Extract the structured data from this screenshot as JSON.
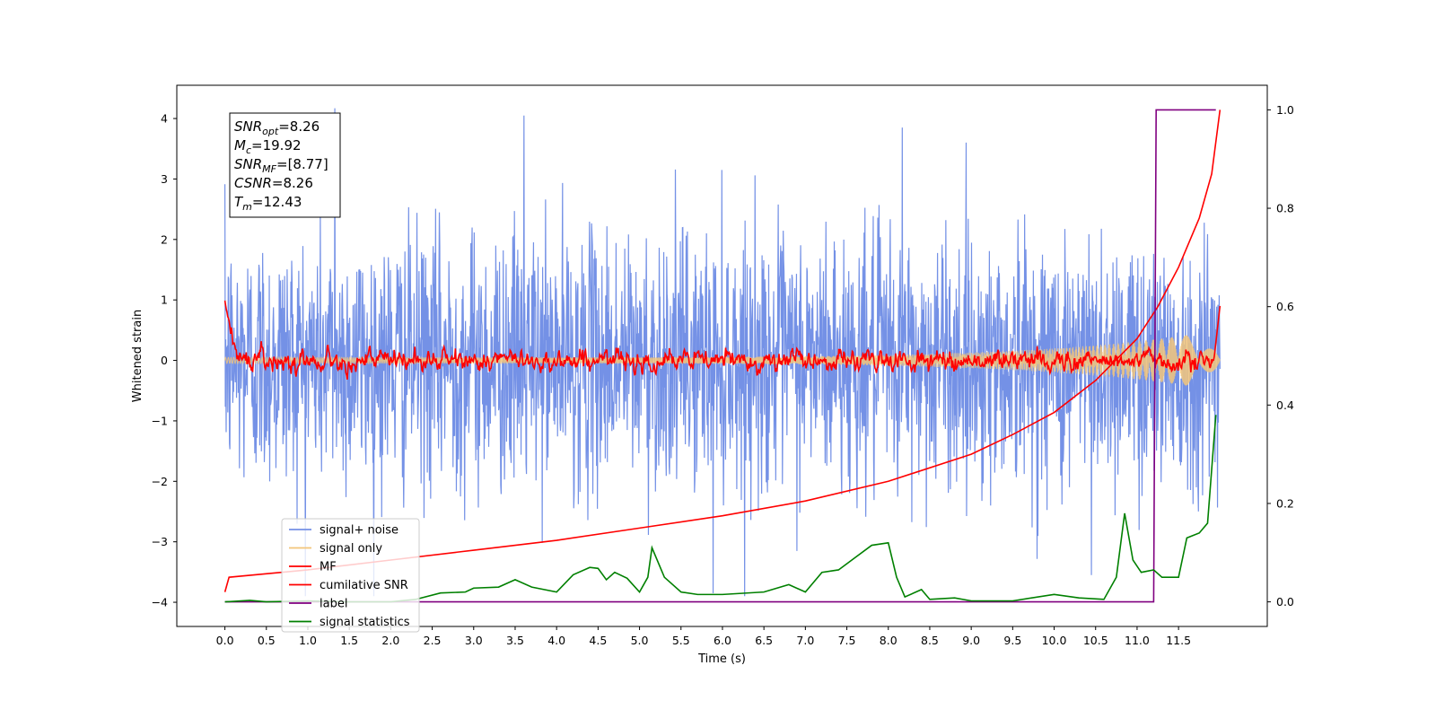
{
  "chart_data": {
    "type": "line",
    "xlabel": "Time (s)",
    "ylabel": "Whitened strain",
    "xlim": [
      -0.58,
      12.57
    ],
    "ylim": [
      -4.4,
      4.55
    ],
    "y2lim": [
      -0.05,
      1.05
    ],
    "xticks": [
      "0.0",
      "0.5",
      "1.0",
      "1.5",
      "2.0",
      "2.5",
      "3.0",
      "3.5",
      "4.0",
      "4.5",
      "5.0",
      "5.5",
      "6.0",
      "6.5",
      "7.0",
      "7.5",
      "8.0",
      "8.5",
      "9.0",
      "9.5",
      "10.0",
      "10.5",
      "11.0",
      "11.5"
    ],
    "yticks": [
      "4",
      "3",
      "2",
      "1",
      "0",
      "−1",
      "−2",
      "−3",
      "−4"
    ],
    "y2ticks": [
      "0.0",
      "0.2",
      "0.4",
      "0.6",
      "0.8",
      "1.0"
    ],
    "legend_position": "lower left",
    "annotation": {
      "lines": [
        {
          "base": "SNR",
          "sub": "opt",
          "value": "=8.26"
        },
        {
          "base": "M",
          "sub": "c",
          "value": "=19.92"
        },
        {
          "base": "SNR",
          "sub": "MF",
          "value": "=[8.77]"
        },
        {
          "base": "CSNR",
          "sub": "",
          "value": "=8.26"
        },
        {
          "base": "T",
          "sub": "m",
          "value": "=12.43"
        }
      ]
    },
    "series": [
      {
        "name": "signal+ noise",
        "color": "#7491e6",
        "axis": "left",
        "kind": "noise",
        "std": 1.0,
        "extremes": [
          4.17,
          4.05,
          -3.85,
          3.85,
          -3.55
        ]
      },
      {
        "name": "signal only",
        "color": "#f3c57a",
        "axis": "left",
        "kind": "chirp",
        "amp_start": 0.05,
        "amp_end": 0.5,
        "x_start": 0.0,
        "x_end": 12.0
      },
      {
        "name": "MF",
        "color": "#ff0000",
        "axis": "left",
        "kind": "mf",
        "baseline": 0.0,
        "start_value": 0.95,
        "end_value": 0.9
      },
      {
        "name": "cumilative SNR",
        "color": "#ff0000",
        "axis": "right",
        "x": [
          0.0,
          0.05,
          1.0,
          2.0,
          3.0,
          4.0,
          5.0,
          6.0,
          7.0,
          8.0,
          9.0,
          9.5,
          10.0,
          10.5,
          11.0,
          11.25,
          11.5,
          11.75,
          11.9,
          12.0
        ],
        "y": [
          0.02,
          0.05,
          0.065,
          0.085,
          0.105,
          0.125,
          0.15,
          0.175,
          0.205,
          0.245,
          0.3,
          0.34,
          0.385,
          0.45,
          0.535,
          0.6,
          0.68,
          0.78,
          0.87,
          1.0
        ]
      },
      {
        "name": "label",
        "color": "#800080",
        "axis": "right",
        "x": [
          0.0,
          11.2,
          11.23,
          11.95
        ],
        "y": [
          0.0,
          0.0,
          1.0,
          1.0
        ]
      },
      {
        "name": "signal statistics",
        "color": "#008000",
        "axis": "right",
        "x": [
          0.0,
          0.3,
          0.5,
          1.0,
          1.5,
          2.0,
          2.3,
          2.6,
          2.9,
          3.0,
          3.3,
          3.5,
          3.7,
          4.0,
          4.2,
          4.4,
          4.5,
          4.6,
          4.7,
          4.85,
          5.0,
          5.1,
          5.15,
          5.3,
          5.5,
          5.7,
          6.0,
          6.5,
          6.8,
          7.0,
          7.2,
          7.4,
          7.6,
          7.8,
          8.0,
          8.1,
          8.2,
          8.4,
          8.5,
          8.8,
          9.0,
          9.5,
          10.0,
          10.3,
          10.6,
          10.75,
          10.85,
          10.95,
          11.05,
          11.2,
          11.3,
          11.4,
          11.5,
          11.6,
          11.75,
          11.85,
          11.95
        ],
        "y": [
          0.0,
          0.003,
          0.0,
          0.002,
          0.0,
          0.0,
          0.005,
          0.018,
          0.02,
          0.028,
          0.03,
          0.045,
          0.03,
          0.02,
          0.055,
          0.07,
          0.068,
          0.045,
          0.06,
          0.048,
          0.02,
          0.05,
          0.11,
          0.05,
          0.02,
          0.015,
          0.015,
          0.02,
          0.035,
          0.02,
          0.06,
          0.065,
          0.09,
          0.115,
          0.12,
          0.05,
          0.01,
          0.025,
          0.005,
          0.008,
          0.002,
          0.002,
          0.015,
          0.008,
          0.005,
          0.05,
          0.18,
          0.085,
          0.06,
          0.065,
          0.05,
          0.05,
          0.05,
          0.13,
          0.14,
          0.16,
          0.38
        ]
      }
    ]
  }
}
